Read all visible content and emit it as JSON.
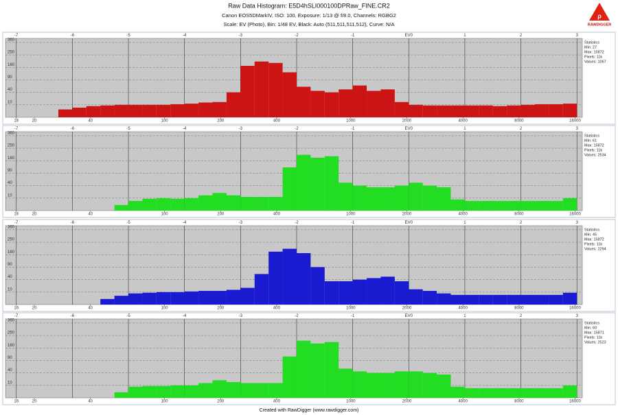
{
  "chart_data": {
    "type": "histogram",
    "title": "Raw Data Histogram: E5D4hSLI000100DPRaw_FINE.CR2",
    "subtitle": "Canon EOS5DMarkIV, ISO: 100, Exposure: 1/13 @ f/8.0, Channels: RGBG2",
    "subtitle2": "Scale: EV (Photo), Bin: 1/48 EV, Black: Auto (511,511,511,512), Curve: N/A",
    "footer": "Created with RawDigger (www.rawdigger.com)",
    "logo": "RAWDIGGER",
    "xscale": "log2",
    "yscale": "sqrt",
    "grid": true,
    "xlim": [
      14,
      17500
    ],
    "ylim": [
      0,
      400
    ],
    "xticks": [
      16,
      20,
      40,
      100,
      200,
      400,
      1000,
      2000,
      4000,
      8000,
      16000
    ],
    "x2ticks": [
      {
        "value": 16,
        "label": "-7"
      },
      {
        "value": 32,
        "label": "-6"
      },
      {
        "value": 64,
        "label": "-5"
      },
      {
        "value": 128,
        "label": "-4"
      },
      {
        "value": 256,
        "label": "-3"
      },
      {
        "value": 512,
        "label": "-2"
      },
      {
        "value": 1024,
        "label": "-1"
      },
      {
        "value": 2048,
        "label": "EV0"
      },
      {
        "value": 4096,
        "label": "1"
      },
      {
        "value": 8192,
        "label": "2"
      },
      {
        "value": 16384,
        "label": "3"
      }
    ],
    "yticks": [
      10,
      40,
      90,
      160,
      250,
      360
    ],
    "bins": [
      16,
      19.03,
      22.63,
      26.91,
      32,
      38.05,
      45.25,
      53.82,
      64,
      76.11,
      90.51,
      107.63,
      128,
      152.22,
      181.02,
      215.27,
      256,
      304.44,
      362.04,
      430.54,
      512,
      608.88,
      724.08,
      861.08,
      1024,
      1217.75,
      1448.15,
      1722.15,
      2048,
      2435.5,
      2896.31,
      3444.31,
      4096,
      4871.0,
      5792.62,
      6888.62,
      8192,
      9742.0,
      11585.24,
      13777.25,
      16384
    ],
    "series": [
      {
        "color": "#cc1414",
        "values": [
          0,
          0,
          0,
          4,
          6,
          8,
          9,
          10,
          10,
          10,
          10,
          11,
          12,
          14,
          15,
          40,
          170,
          200,
          190,
          130,
          60,
          45,
          40,
          50,
          65,
          45,
          50,
          15,
          10,
          9,
          9,
          9,
          9,
          9,
          8,
          9,
          10,
          11,
          11,
          12
        ],
        "stats": [
          "Statistics",
          "Min: 27",
          "Max: 15872",
          "Pixels: 11k",
          "Values: 1067"
        ]
      },
      {
        "color": "#22dd22",
        "values": [
          0,
          0,
          0,
          0,
          0,
          0,
          0,
          2,
          6,
          9,
          10,
          9,
          10,
          15,
          20,
          15,
          12,
          12,
          12,
          120,
          200,
          180,
          190,
          50,
          40,
          35,
          35,
          40,
          50,
          40,
          35,
          8,
          6,
          6,
          6,
          6,
          6,
          6,
          6,
          10
        ],
        "stats": [
          "Statistics",
          "Min: 61",
          "Max: 15872",
          "Pixels: 11k",
          "Values: 2534"
        ]
      },
      {
        "color": "#1a1ad0",
        "values": [
          0,
          0,
          0,
          0,
          0,
          0,
          2,
          5,
          8,
          9,
          10,
          10,
          11,
          12,
          12,
          14,
          18,
          60,
          180,
          200,
          170,
          90,
          35,
          35,
          40,
          45,
          50,
          35,
          15,
          12,
          8,
          6,
          6,
          6,
          6,
          6,
          6,
          6,
          6,
          9
        ],
        "stats": [
          "Statistics",
          "Min: 45",
          "Max: 15872",
          "Pixels: 11k",
          "Values: 2294"
        ]
      },
      {
        "color": "#22dd22",
        "values": [
          0,
          0,
          0,
          0,
          0,
          0,
          0,
          2,
          8,
          9,
          9,
          10,
          10,
          14,
          20,
          16,
          14,
          14,
          14,
          110,
          210,
          190,
          200,
          55,
          45,
          40,
          40,
          45,
          45,
          40,
          35,
          8,
          6,
          6,
          6,
          6,
          6,
          6,
          6,
          10
        ],
        "stats": [
          "Statistics",
          "Min: 60",
          "Max: 15871",
          "Pixels: 11k",
          "Values: 2523"
        ]
      }
    ]
  }
}
